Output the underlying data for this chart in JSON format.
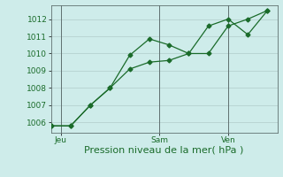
{
  "line1_x": [
    0,
    1,
    2,
    3,
    4,
    5,
    6,
    7,
    8,
    9,
    10,
    11
  ],
  "line1_y": [
    1005.8,
    1005.8,
    1007.0,
    1008.0,
    1009.9,
    1010.85,
    1010.5,
    1010.0,
    1011.6,
    1012.0,
    1011.1,
    1012.5
  ],
  "line2_x": [
    0,
    1,
    2,
    3,
    4,
    5,
    6,
    7,
    8,
    9,
    10,
    11
  ],
  "line2_y": [
    1005.8,
    1005.8,
    1007.0,
    1008.0,
    1009.1,
    1009.5,
    1009.6,
    1010.0,
    1010.0,
    1011.6,
    1012.0,
    1012.5
  ],
  "line_color": "#1a6b2a",
  "background_color": "#ceecea",
  "grid_color": "#b0cbc9",
  "ylim": [
    1005.4,
    1012.8
  ],
  "yticks": [
    1006,
    1007,
    1008,
    1009,
    1010,
    1011,
    1012
  ],
  "xlabel": "Pression niveau de la mer( hPa )",
  "xtick_positions": [
    0.5,
    5.5,
    9.0
  ],
  "xtick_labels": [
    "Jeu",
    "Sam",
    "Ven"
  ],
  "vline_x": [
    0.5,
    5.5,
    9.0
  ],
  "xlim": [
    0,
    11.5
  ],
  "label_fontsize": 8,
  "tick_fontsize": 6.5,
  "xlabel_fontsize": 8
}
